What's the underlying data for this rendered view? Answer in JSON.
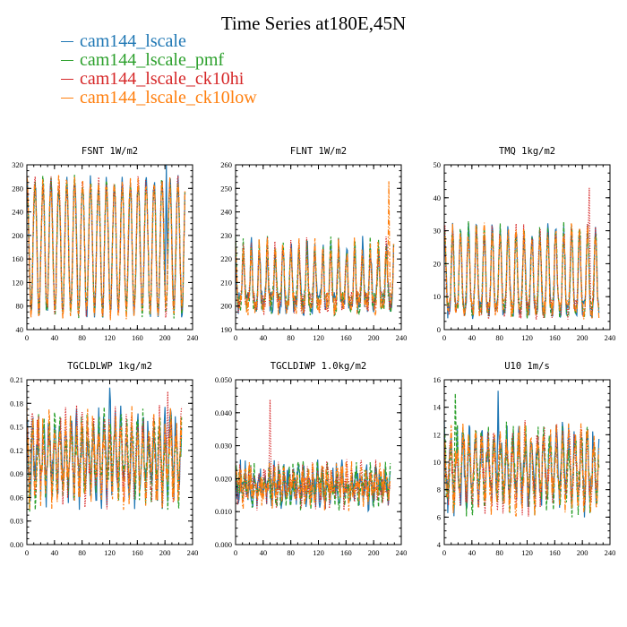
{
  "title": "Time Series at180E,45N",
  "legend": [
    {
      "name": "cam144_lscale",
      "color": "#1f77b4",
      "style": "solid"
    },
    {
      "name": "cam144_lscale_pmf",
      "color": "#2ca02c",
      "style": "dashed"
    },
    {
      "name": "cam144_lscale_ck10hi",
      "color": "#d62728",
      "style": "dotted"
    },
    {
      "name": "cam144_lscale_ck10low",
      "color": "#ff7f0e",
      "style": "dashdot"
    }
  ],
  "chart_data": [
    {
      "type": "line",
      "title": "FSNT   1W/m2",
      "xlim": [
        0,
        240
      ],
      "xticks": [
        "0",
        "40",
        "80",
        "120",
        "160",
        "200",
        "240"
      ],
      "ylim": [
        40,
        320
      ],
      "yticks": [
        "40",
        "80",
        "120",
        "160",
        "200",
        "240",
        "280",
        "320"
      ],
      "n": 230,
      "period": 11.5,
      "mean": 180,
      "amp": 110,
      "noise": 14,
      "peak_sharp": 1.0,
      "series": [
        {
          "name": "cam144_lscale",
          "peak_value": 320,
          "peak_at": 202
        },
        {
          "name": "cam144_lscale_pmf"
        },
        {
          "name": "cam144_lscale_ck10hi"
        },
        {
          "name": "cam144_lscale_ck10low"
        }
      ]
    },
    {
      "type": "line",
      "title": "FLNT   1W/m2",
      "xlim": [
        0,
        240
      ],
      "xticks": [
        "0",
        "40",
        "80",
        "120",
        "160",
        "200",
        "240"
      ],
      "ylim": [
        190,
        260
      ],
      "yticks": [
        "190",
        "200",
        "210",
        "220",
        "230",
        "240",
        "250",
        "260"
      ],
      "n": 230,
      "period": 11.5,
      "mean": 213,
      "amp": 12,
      "noise": 5,
      "peak_sharp": 3.0,
      "series": [
        {
          "name": "cam144_lscale"
        },
        {
          "name": "cam144_lscale_pmf"
        },
        {
          "name": "cam144_lscale_ck10hi"
        },
        {
          "name": "cam144_lscale_ck10low",
          "peak_value": 253,
          "peak_at": 222
        }
      ]
    },
    {
      "type": "line",
      "title": "TMQ   1kg/m2",
      "xlim": [
        0,
        240
      ],
      "xticks": [
        "0",
        "40",
        "80",
        "120",
        "160",
        "200",
        "240"
      ],
      "ylim": [
        0,
        50
      ],
      "yticks": [
        "0",
        "10",
        "20",
        "30",
        "40",
        "50"
      ],
      "n": 225,
      "period": 11.5,
      "mean": 18,
      "amp": 12,
      "noise": 3,
      "peak_sharp": 2.0,
      "series": [
        {
          "name": "cam144_lscale"
        },
        {
          "name": "cam144_lscale_pmf"
        },
        {
          "name": "cam144_lscale_ck10hi",
          "peak_value": 43,
          "peak_at": 210
        },
        {
          "name": "cam144_lscale_ck10low"
        }
      ]
    },
    {
      "type": "line",
      "title": "TGCLDLWP   1kg/m2",
      "xlim": [
        0,
        240
      ],
      "xticks": [
        "0",
        "40",
        "80",
        "120",
        "160",
        "200",
        "240"
      ],
      "ylim": [
        0.0,
        0.21
      ],
      "yticks": [
        "0.00",
        "0.03",
        "0.06",
        "0.09",
        "0.12",
        "0.15",
        "0.18",
        "0.21"
      ],
      "n": 225,
      "period": 8,
      "mean": 0.11,
      "amp": 0.04,
      "noise": 0.028,
      "peak_sharp": 1.0,
      "series": [
        {
          "name": "cam144_lscale",
          "peak_value": 0.2,
          "peak_at": 120
        },
        {
          "name": "cam144_lscale_pmf"
        },
        {
          "name": "cam144_lscale_ck10hi",
          "peak_value": 0.195,
          "peak_at": 204
        },
        {
          "name": "cam144_lscale_ck10low"
        }
      ]
    },
    {
      "type": "line",
      "title": "TGCLDIWP   1.0kg/m2",
      "xlim": [
        0,
        240
      ],
      "xticks": [
        "0",
        "40",
        "80",
        "120",
        "160",
        "200",
        "240"
      ],
      "ylim": [
        0.0,
        0.05
      ],
      "yticks": [
        "0.000",
        "0.010",
        "0.020",
        "0.030",
        "0.040",
        "0.050"
      ],
      "n": 225,
      "period": 7,
      "mean": 0.018,
      "amp": 0.003,
      "noise": 0.005,
      "peak_sharp": 1.0,
      "series": [
        {
          "name": "cam144_lscale"
        },
        {
          "name": "cam144_lscale_pmf"
        },
        {
          "name": "cam144_lscale_ck10hi",
          "peak_value": 0.044,
          "peak_at": 50
        },
        {
          "name": "cam144_lscale_ck10low"
        }
      ]
    },
    {
      "type": "line",
      "title": "U10   1m/s",
      "xlim": [
        0,
        240
      ],
      "xticks": [
        "0",
        "40",
        "80",
        "120",
        "160",
        "200",
        "240"
      ],
      "ylim": [
        4,
        16
      ],
      "yticks": [
        "4",
        "6",
        "8",
        "10",
        "12",
        "14",
        "16"
      ],
      "n": 225,
      "period": 9,
      "mean": 9.5,
      "amp": 2.2,
      "noise": 1.4,
      "peak_sharp": 1.0,
      "series": [
        {
          "name": "cam144_lscale",
          "peak_value": 15.2,
          "peak_at": 78
        },
        {
          "name": "cam144_lscale_pmf",
          "peak_value": 15,
          "peak_at": 16
        },
        {
          "name": "cam144_lscale_ck10hi"
        },
        {
          "name": "cam144_lscale_ck10low"
        }
      ]
    }
  ]
}
